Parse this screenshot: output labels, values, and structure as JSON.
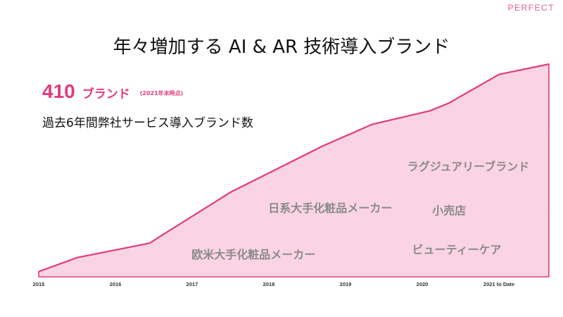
{
  "header": {
    "logo": "PERFECT"
  },
  "title": "年々増加する AI & AR 技術導入ブランド",
  "stat": {
    "value": "410",
    "unit": "ブランド",
    "note": "(2021年末時点)",
    "description": "過去6年間弊社サービス導入ブランド数"
  },
  "chart_data": {
    "type": "area",
    "title": "年々増加する AI & AR 技術導入ブランド",
    "xlabel": "",
    "ylabel": "",
    "categories": [
      "2015",
      "2016",
      "2017",
      "2018",
      "2019",
      "2020",
      "2021 to Date"
    ],
    "x": [
      0,
      0.5,
      1.45,
      1.55,
      2.5,
      3.7,
      4.35,
      5.1,
      5.35,
      6.0,
      6.65
    ],
    "y": [
      10,
      37,
      65,
      75,
      163,
      252,
      294,
      320,
      335,
      390,
      410
    ],
    "ylim": [
      0,
      410
    ],
    "grid": false,
    "legend": "none",
    "colors": {
      "fill": "#fad4e3",
      "line": "#e03b7f"
    },
    "annotations": [
      {
        "text": "欧米大手化粧品メーカー",
        "x": 2.8,
        "y": 35
      },
      {
        "text": "日系大手化粧品メーカー",
        "x": 3.8,
        "y": 125
      },
      {
        "text": "ラグジュアリーブランド",
        "x": 5.6,
        "y": 205
      },
      {
        "text": "小売店",
        "x": 5.35,
        "y": 120
      },
      {
        "text": "ビューティーケア",
        "x": 5.45,
        "y": 45
      }
    ]
  }
}
